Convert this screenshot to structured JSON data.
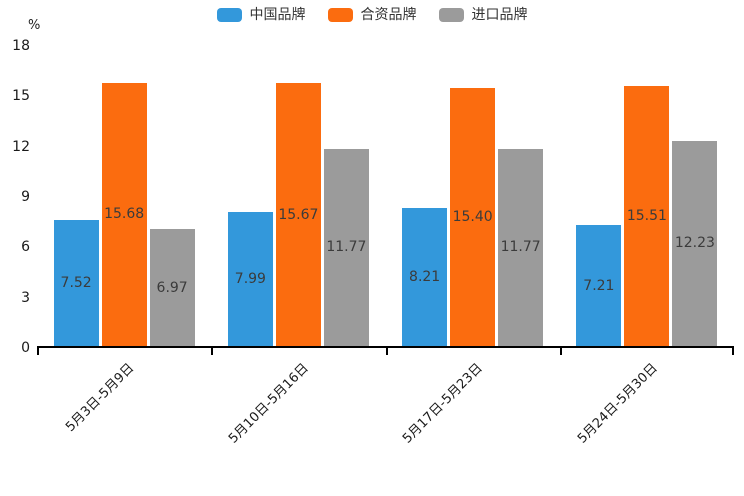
{
  "page": {
    "background": "#ffffff"
  },
  "legend": {
    "position": "top-center",
    "items": [
      {
        "label": "中国品牌",
        "color": "#3398DB"
      },
      {
        "label": "合资品牌",
        "color": "#FB6C0F"
      },
      {
        "label": "进口品牌",
        "color": "#9B9B9B"
      }
    ]
  },
  "y_axis": {
    "unit_label": "%",
    "tick_labels": [
      "18",
      "15",
      "12",
      "9",
      "6",
      "3",
      "0"
    ]
  },
  "chart_data": {
    "type": "bar",
    "title": "",
    "categories": [
      "5月3日-5月9日",
      "5月10日-5月16日",
      "5月17日-5月23日",
      "5月24日-5月30日"
    ],
    "series": [
      {
        "name": "中国品牌",
        "color": "#3398DB",
        "values": [
          7.52,
          7.99,
          8.21,
          7.21
        ]
      },
      {
        "name": "合资品牌",
        "color": "#FB6C0F",
        "values": [
          15.68,
          15.67,
          15.4,
          15.51
        ]
      },
      {
        "name": "进口品牌",
        "color": "#9B9B9B",
        "values": [
          6.97,
          11.77,
          11.77,
          12.23
        ]
      }
    ],
    "xlabel": "",
    "ylabel": "%",
    "ylim": [
      0,
      18
    ],
    "ytick_interval": 3,
    "grid": false,
    "value_labels": "inside-center, two decimals",
    "xtick_label_rotation_deg": 45,
    "legend_position": "top"
  }
}
